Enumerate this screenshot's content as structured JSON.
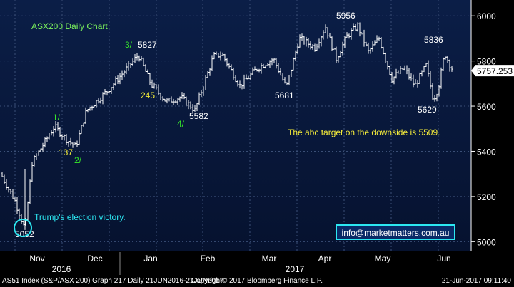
{
  "chart_data": {
    "type": "ohlc",
    "title": "ASX200 Daily Chart",
    "ylim": [
      4960,
      6070
    ],
    "yticks": [
      5000,
      5200,
      5400,
      5600,
      5800,
      6000
    ],
    "ytick_labels": [
      "5000",
      "5200",
      "5400",
      "5600",
      "5800",
      "6000"
    ],
    "last_price": 5757.253,
    "last_price_label": "5757.253",
    "months": [
      "Nov",
      "Dec",
      "Jan",
      "Feb",
      "Mar",
      "Apr",
      "May",
      "Jun"
    ],
    "years": [
      "2016",
      "2017"
    ],
    "x_count": 262,
    "key_points": [
      {
        "x": 0,
        "value": 5300
      },
      {
        "x": 20,
        "value": 5180
      },
      {
        "x": 34,
        "value": 5052
      },
      {
        "x": 44,
        "value": 5350
      },
      {
        "x": 75,
        "value": 5510
      },
      {
        "x": 93,
        "value": 5450
      },
      {
        "x": 105,
        "value": 5420
      },
      {
        "x": 120,
        "value": 5580
      },
      {
        "x": 150,
        "value": 5670
      },
      {
        "x": 193,
        "value": 5827
      },
      {
        "x": 210,
        "value": 5700
      },
      {
        "x": 232,
        "value": 5620
      },
      {
        "x": 252,
        "value": 5640
      },
      {
        "x": 272,
        "value": 5582
      },
      {
        "x": 298,
        "value": 5820
      },
      {
        "x": 310,
        "value": 5830
      },
      {
        "x": 335,
        "value": 5690
      },
      {
        "x": 360,
        "value": 5770
      },
      {
        "x": 382,
        "value": 5810
      },
      {
        "x": 400,
        "value": 5681
      },
      {
        "x": 418,
        "value": 5900
      },
      {
        "x": 440,
        "value": 5860
      },
      {
        "x": 455,
        "value": 5950
      },
      {
        "x": 470,
        "value": 5810
      },
      {
        "x": 485,
        "value": 5910
      },
      {
        "x": 500,
        "value": 5956
      },
      {
        "x": 515,
        "value": 5840
      },
      {
        "x": 530,
        "value": 5900
      },
      {
        "x": 548,
        "value": 5720
      },
      {
        "x": 565,
        "value": 5770
      },
      {
        "x": 580,
        "value": 5690
      },
      {
        "x": 596,
        "value": 5780
      },
      {
        "x": 606,
        "value": 5629
      },
      {
        "x": 613,
        "value": 5680
      },
      {
        "x": 622,
        "value": 5836
      },
      {
        "x": 628,
        "value": 5790
      },
      {
        "x": 634,
        "value": 5757.253
      }
    ],
    "annotations": {
      "title": "ASX200 Daily Chart",
      "wave_1": "1/",
      "wave_2": "2/",
      "wave_3": "3/",
      "wave_4": "4/",
      "v137": "137",
      "v245": "245",
      "v5827": "5827",
      "v5582": "5582",
      "v5681": "5681",
      "v5956": "5956",
      "v5836": "5836",
      "v5629": "5629",
      "v5052": "5052",
      "election": "Trump's election victory.",
      "target": "The abc target on the downside is 5509.",
      "website": "info@marketmatters.com.au"
    }
  },
  "footer": {
    "left": "AS51 Index (S&P/ASX 200) Graph 217  Daily 21JUN2016-21JUN2017",
    "center": "Copyright© 2017 Bloomberg Finance L.P.",
    "right": "21-Jun-2017 09:11:40"
  }
}
